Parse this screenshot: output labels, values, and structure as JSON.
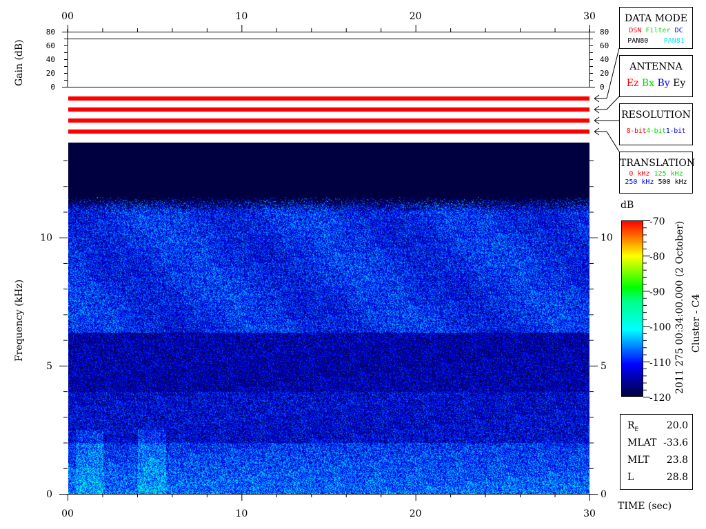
{
  "chart_data": {
    "type": "heatmap",
    "title": "",
    "xlabel": "TIME (sec)",
    "ylabel": "Frequency (kHz)",
    "xlim": [
      0,
      30
    ],
    "ylim": [
      0,
      13.7
    ],
    "x_tick_labels": [
      "00",
      "10",
      "20",
      "30"
    ],
    "x_ticks": [
      0,
      10,
      20,
      30
    ],
    "y_tick_labels": [
      "0",
      "5",
      "10"
    ],
    "y_ticks": [
      0,
      5,
      10
    ],
    "data_upper_frequency_khz": 11.3,
    "colorbar": {
      "label": "dB",
      "range": [
        -120,
        -70
      ],
      "ticks": [
        -70,
        -80,
        -90,
        -100,
        -110,
        -120
      ],
      "tick_labels": [
        "-70",
        "-80",
        "-90",
        "-100",
        "-110",
        "-120"
      ],
      "colormap": [
        "#000040",
        "#0000ff",
        "#00ffff",
        "#00ff00",
        "#ffff00",
        "#ff0000"
      ]
    },
    "gain_panel": {
      "ylabel": "Gain (dB)",
      "ylim": [
        0,
        80
      ],
      "tick_labels": [
        "0",
        "20",
        "40",
        "60",
        "80"
      ],
      "gain_value_db": 70
    },
    "status_bars": {
      "count": 4,
      "color": "#ff0000"
    }
  },
  "legend_boxes": {
    "data_mode": {
      "title": "DATA MODE",
      "items": [
        {
          "text": "DSN",
          "color": "#ff0000"
        },
        {
          "text": "Filter",
          "color": "#00dd00"
        },
        {
          "text": "DC",
          "color": "#0000ff"
        },
        {
          "text": "PAN80",
          "color": "#000000"
        },
        {
          "text": "PAN81",
          "color": "#00e5ff"
        }
      ]
    },
    "antenna": {
      "title": "ANTENNA",
      "items": [
        {
          "text": "Ez",
          "color": "#ff0000"
        },
        {
          "text": "Bx",
          "color": "#00dd00"
        },
        {
          "text": "By",
          "color": "#0000ff"
        },
        {
          "text": "Ey",
          "color": "#000000"
        }
      ]
    },
    "resolution": {
      "title": "RESOLUTION",
      "items": [
        {
          "text": "8-bit",
          "color": "#ff0000"
        },
        {
          "text": "4-bit",
          "color": "#00dd00"
        },
        {
          "text": "1-bit",
          "color": "#0000ff"
        }
      ]
    },
    "translation": {
      "title": "TRANSLATION",
      "items": [
        {
          "text": "0 kHz",
          "color": "#ff0000"
        },
        {
          "text": "125 kHz",
          "color": "#00dd00"
        },
        {
          "text": "250 kHz",
          "color": "#0000ff"
        },
        {
          "text": "500 kHz",
          "color": "#000000"
        }
      ]
    }
  },
  "timestamp": "2011 275 00:34:00.000 (2 October)",
  "spacecraft": "Cluster - C4",
  "orbit_info": [
    {
      "label": "R",
      "sub": "E",
      "value": "20.0"
    },
    {
      "label": "MLAT",
      "sub": "",
      "value": "-33.6"
    },
    {
      "label": "MLT",
      "sub": "",
      "value": "23.8"
    },
    {
      "label": "L",
      "sub": "",
      "value": "28.8"
    }
  ]
}
